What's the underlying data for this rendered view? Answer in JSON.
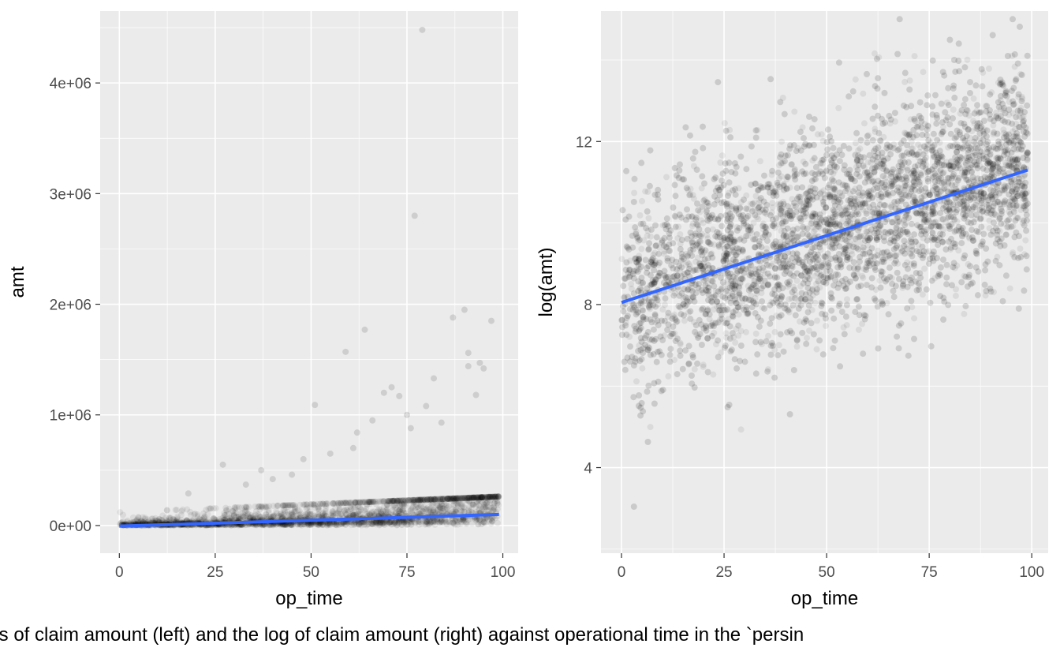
{
  "caption": "ts of claim amount (left) and the log of claim amount (right) against operational time in the `persin",
  "colors": {
    "panel_background": "#ebebeb",
    "grid_major": "#ffffff",
    "points": "#000000",
    "fit_line": "#3366ff",
    "tick_text": "#4d4d4d",
    "title_text": "#000000"
  },
  "chart_data": [
    {
      "type": "scatter",
      "title": "",
      "xlabel": "op_time",
      "ylabel": "amt",
      "xlim": [
        -5,
        104
      ],
      "ylim": [
        -250000,
        4650000
      ],
      "x_ticks": [
        0,
        25,
        50,
        75,
        100
      ],
      "x_tick_labels": [
        "0",
        "25",
        "50",
        "75",
        "100"
      ],
      "y_ticks": [
        0,
        1000000,
        2000000,
        3000000,
        4000000
      ],
      "y_tick_labels": [
        "0e+00",
        "1e+06",
        "2e+06",
        "3e+06",
        "4e+06"
      ],
      "grid": true,
      "legend": "none",
      "fit_line": {
        "x": [
          0,
          99
        ],
        "y": [
          -5000,
          100000
        ]
      },
      "highlight_points": {
        "x": [
          79,
          77,
          64,
          59,
          97,
          90,
          87,
          91,
          94,
          51,
          95,
          91,
          82,
          71,
          69,
          80,
          73,
          75,
          93,
          66,
          84,
          76,
          61,
          48,
          37,
          62,
          27,
          18,
          40,
          45,
          55,
          33
        ],
        "y": [
          4480000,
          2800000,
          1770000,
          1570000,
          1850000,
          1950000,
          1880000,
          1560000,
          1470000,
          1090000,
          1420000,
          1440000,
          1330000,
          1250000,
          1200000,
          1080000,
          1170000,
          1000000,
          1180000,
          950000,
          930000,
          880000,
          700000,
          600000,
          500000,
          840000,
          550000,
          290000,
          420000,
          460000,
          650000,
          370000
        ]
      },
      "point_cloud": {
        "count": 2500,
        "x_range": [
          0,
          99
        ],
        "y_typical_max": 200000,
        "note": "dense cluster of semi-transparent points near zero, spreading upward with op_time"
      }
    },
    {
      "type": "scatter",
      "title": "",
      "xlabel": "op_time",
      "ylabel": "log(amt)",
      "xlim": [
        -5,
        104
      ],
      "ylim": [
        1.9,
        15.2
      ],
      "x_ticks": [
        0,
        25,
        50,
        75,
        100
      ],
      "x_tick_labels": [
        "0",
        "25",
        "50",
        "75",
        "100"
      ],
      "y_ticks": [
        4,
        8,
        12
      ],
      "y_tick_labels": [
        "4",
        "8",
        "12"
      ],
      "grid": true,
      "legend": "none",
      "fit_line": {
        "x": [
          0,
          99
        ],
        "y": [
          8.05,
          11.3
        ]
      },
      "point_cloud": {
        "count": 6000,
        "x_range": [
          0,
          99
        ],
        "y_range": [
          2.3,
          15.0
        ],
        "note": "dense semi-transparent cloud following the upward linear trend"
      }
    }
  ]
}
